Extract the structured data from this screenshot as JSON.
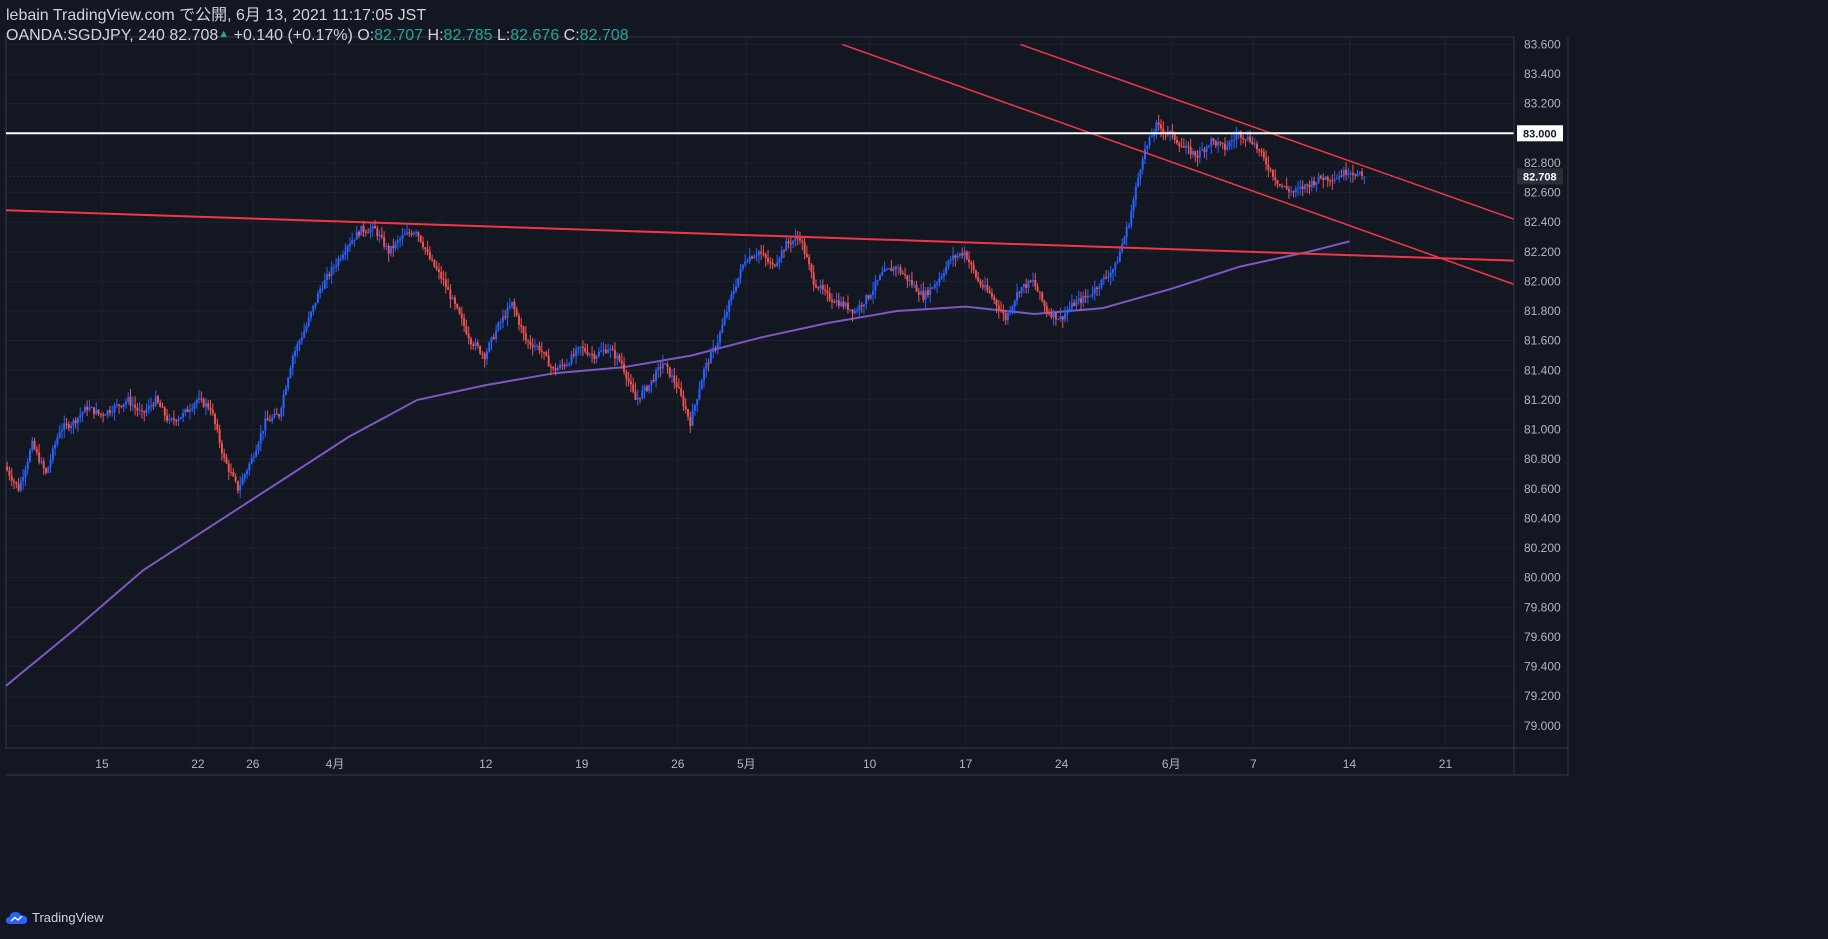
{
  "header": {
    "line1": "lebain TradingView.com で公開, 6月 13, 2021 11:17:05 JST",
    "symbol": "OANDA:SGDJPY, 240 82.708",
    "change_icon": "up-triangle-icon",
    "change": "+0.140 (+0.17%)",
    "o_label": "O:",
    "o": "82.707",
    "h_label": "H:",
    "h": "82.785",
    "l_label": "L:",
    "l": "82.676",
    "c_label": "C:",
    "c": "82.708"
  },
  "brand": {
    "label": "TradingView",
    "icon": "tradingview-cloud-icon"
  },
  "colors": {
    "background": "#131722",
    "grid": "#1e222d",
    "up": "#2962ff",
    "down": "#ef5350",
    "ma": "#7e57c2",
    "trend": "#f23645",
    "level": "#ffffff",
    "text": "#b2b5be"
  },
  "chart_data": {
    "type": "candlestick",
    "title": "OANDA:SGDJPY, 240",
    "ylim": [
      78.85,
      83.65
    ],
    "y_ticks": [
      "83.600",
      "83.400",
      "83.200",
      "83.000",
      "82.800",
      "82.600",
      "82.400",
      "82.200",
      "82.000",
      "81.800",
      "81.600",
      "81.400",
      "81.200",
      "81.000",
      "80.800",
      "80.600",
      "80.400",
      "80.200",
      "80.000",
      "79.800",
      "79.600",
      "79.400",
      "79.200",
      "79.000"
    ],
    "x_ticks": [
      {
        "label": "15",
        "day": 0
      },
      {
        "label": "22",
        "day": 7
      },
      {
        "label": "26",
        "day": 11
      },
      {
        "label": "4月",
        "day": 17
      },
      {
        "label": "12",
        "day": 28
      },
      {
        "label": "19",
        "day": 35
      },
      {
        "label": "26",
        "day": 42
      },
      {
        "label": "5月",
        "day": 47
      },
      {
        "label": "10",
        "day": 56
      },
      {
        "label": "17",
        "day": 63
      },
      {
        "label": "24",
        "day": 70
      },
      {
        "label": "6月",
        "day": 78
      },
      {
        "label": "7",
        "day": 84
      },
      {
        "label": "14",
        "day": 91
      },
      {
        "label": "21",
        "day": 98
      }
    ],
    "x_range_days": [
      -7,
      103
    ],
    "last_price": "82.708",
    "last_value": 82.708,
    "level_label": "83.000",
    "level_value": 83.0,
    "moving_average": {
      "name": "MA",
      "points": [
        [
          -7,
          79.27
        ],
        [
          -2,
          79.65
        ],
        [
          3,
          80.05
        ],
        [
          8,
          80.35
        ],
        [
          13,
          80.65
        ],
        [
          18,
          80.95
        ],
        [
          23,
          81.2
        ],
        [
          28,
          81.3
        ],
        [
          33,
          81.38
        ],
        [
          38,
          81.42
        ],
        [
          43,
          81.5
        ],
        [
          48,
          81.62
        ],
        [
          53,
          81.72
        ],
        [
          58,
          81.8
        ],
        [
          63,
          81.83
        ],
        [
          68,
          81.78
        ],
        [
          73,
          81.82
        ],
        [
          78,
          81.95
        ],
        [
          83,
          82.1
        ],
        [
          88,
          82.2
        ],
        [
          91,
          82.27
        ]
      ]
    },
    "trendlines": [
      {
        "name": "resistance",
        "points": [
          [
            -7,
            82.48
          ],
          [
            103,
            82.14
          ]
        ]
      },
      {
        "name": "channel-upper",
        "points": [
          [
            67,
            83.6
          ],
          [
            103,
            82.42
          ]
        ]
      },
      {
        "name": "channel-lower",
        "points": [
          [
            54,
            83.6
          ],
          [
            103,
            81.98
          ]
        ]
      }
    ],
    "anchors": [
      [
        -7,
        80.75
      ],
      [
        -6,
        80.6
      ],
      [
        -5,
        80.9
      ],
      [
        -4,
        80.7
      ],
      [
        -3,
        81.0
      ],
      [
        -2,
        81.05
      ],
      [
        -1,
        81.15
      ],
      [
        0,
        81.1
      ],
      [
        1,
        81.15
      ],
      [
        2,
        81.2
      ],
      [
        3,
        81.1
      ],
      [
        4,
        81.2
      ],
      [
        5,
        81.05
      ],
      [
        6,
        81.1
      ],
      [
        7,
        81.2
      ],
      [
        8,
        81.15
      ],
      [
        9,
        80.8
      ],
      [
        10,
        80.6
      ],
      [
        11,
        80.8
      ],
      [
        12,
        81.05
      ],
      [
        13,
        81.1
      ],
      [
        14,
        81.5
      ],
      [
        15,
        81.7
      ],
      [
        16,
        81.95
      ],
      [
        17,
        82.1
      ],
      [
        18,
        82.25
      ],
      [
        19,
        82.35
      ],
      [
        20,
        82.35
      ],
      [
        21,
        82.2
      ],
      [
        22,
        82.3
      ],
      [
        23,
        82.35
      ],
      [
        24,
        82.15
      ],
      [
        25,
        82.0
      ],
      [
        26,
        81.8
      ],
      [
        27,
        81.6
      ],
      [
        28,
        81.5
      ],
      [
        29,
        81.7
      ],
      [
        30,
        81.85
      ],
      [
        31,
        81.6
      ],
      [
        32,
        81.55
      ],
      [
        33,
        81.4
      ],
      [
        34,
        81.45
      ],
      [
        35,
        81.55
      ],
      [
        36,
        81.5
      ],
      [
        37,
        81.55
      ],
      [
        38,
        81.45
      ],
      [
        39,
        81.2
      ],
      [
        40,
        81.3
      ],
      [
        41,
        81.45
      ],
      [
        42,
        81.3
      ],
      [
        43,
        81.05
      ],
      [
        44,
        81.4
      ],
      [
        45,
        81.6
      ],
      [
        46,
        81.9
      ],
      [
        47,
        82.15
      ],
      [
        48,
        82.2
      ],
      [
        49,
        82.1
      ],
      [
        50,
        82.25
      ],
      [
        51,
        82.3
      ],
      [
        52,
        82.0
      ],
      [
        53,
        81.9
      ],
      [
        54,
        81.85
      ],
      [
        55,
        81.8
      ],
      [
        56,
        81.9
      ],
      [
        57,
        82.05
      ],
      [
        58,
        82.1
      ],
      [
        59,
        82.0
      ],
      [
        60,
        81.9
      ],
      [
        61,
        82.0
      ],
      [
        62,
        82.15
      ],
      [
        63,
        82.2
      ],
      [
        64,
        82.0
      ],
      [
        65,
        81.9
      ],
      [
        66,
        81.75
      ],
      [
        67,
        81.95
      ],
      [
        68,
        82.0
      ],
      [
        69,
        81.8
      ],
      [
        70,
        81.75
      ],
      [
        71,
        81.85
      ],
      [
        72,
        81.9
      ],
      [
        73,
        82.0
      ],
      [
        74,
        82.1
      ],
      [
        75,
        82.4
      ],
      [
        76,
        82.85
      ],
      [
        77,
        83.05
      ],
      [
        78,
        83.0
      ],
      [
        79,
        82.9
      ],
      [
        80,
        82.85
      ],
      [
        81,
        82.95
      ],
      [
        82,
        82.9
      ],
      [
        83,
        83.0
      ],
      [
        84,
        82.95
      ],
      [
        85,
        82.8
      ],
      [
        86,
        82.65
      ],
      [
        87,
        82.6
      ],
      [
        88,
        82.65
      ],
      [
        89,
        82.7
      ],
      [
        90,
        82.7
      ],
      [
        91,
        82.75
      ],
      [
        92,
        82.71
      ]
    ]
  }
}
